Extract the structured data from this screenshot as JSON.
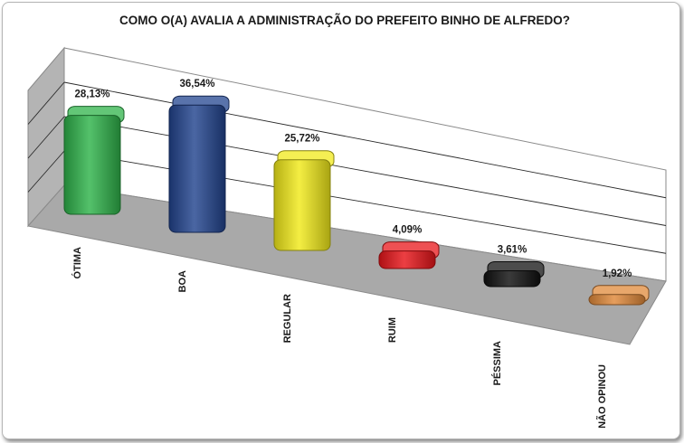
{
  "chart_data": {
    "type": "bar",
    "title": "COMO O(A) AVALIA A ADMINISTRAÇÃO DO PREFEITO BINHO DE ALFREDO?",
    "categories": [
      "ÓTIMA",
      "BOA",
      "REGULAR",
      "RUIM",
      "PÉSSIMA",
      "NÃO OPINOU"
    ],
    "values": [
      28.13,
      36.54,
      25.72,
      4.09,
      3.61,
      1.92
    ],
    "value_labels": [
      "28,13%",
      "36,54%",
      "25,72%",
      "4,09%",
      "3,61%",
      "1,92%"
    ],
    "colors": [
      "#2fb34a",
      "#22448f",
      "#f2ea1a",
      "#e8151a",
      "#101010",
      "#e0893a"
    ],
    "ylim": [
      0,
      40
    ],
    "grid": true,
    "legend": "none",
    "style": "3d-perspective"
  }
}
